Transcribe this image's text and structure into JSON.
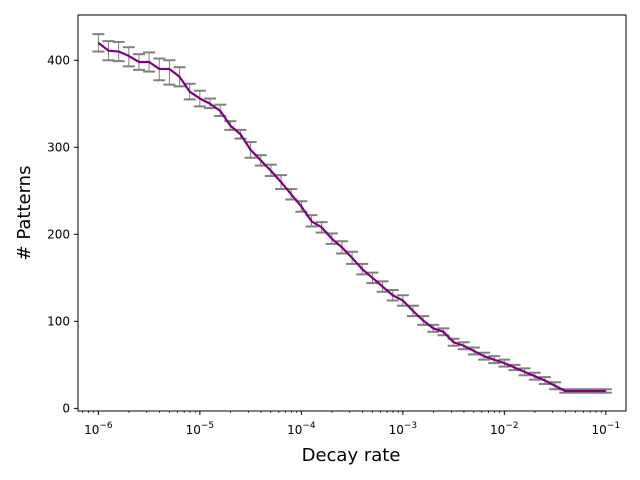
{
  "chart_data": {
    "type": "line",
    "title": "",
    "xlabel": "Decay rate",
    "ylabel": "# Patterns",
    "xscale": "log",
    "xlim": [
      6.3e-07,
      0.158
    ],
    "ylim": [
      -3,
      452
    ],
    "grid": false,
    "legend": "none",
    "x_tick_labels": [
      {
        "base": "10",
        "exp": "−6"
      },
      {
        "base": "10",
        "exp": "−5"
      },
      {
        "base": "10",
        "exp": "−4"
      },
      {
        "base": "10",
        "exp": "−3"
      },
      {
        "base": "10",
        "exp": "−2"
      },
      {
        "base": "10",
        "exp": "−1"
      }
    ],
    "y_ticks": [
      0,
      100,
      200,
      300,
      400
    ],
    "colors": {
      "line": "#800080",
      "errorbar": "#808080"
    },
    "series": [
      {
        "x_log10": [
          -6.0,
          -5.9,
          -5.8,
          -5.7,
          -5.6,
          -5.5,
          -5.4,
          -5.3,
          -5.2,
          -5.1,
          -5.0,
          -4.9,
          -4.8,
          -4.7,
          -4.6,
          -4.5,
          -4.4,
          -4.3,
          -4.2,
          -4.1,
          -4.0,
          -3.9,
          -3.8,
          -3.7,
          -3.6,
          -3.5,
          -3.4,
          -3.3,
          -3.2,
          -3.1,
          -3.0,
          -2.9,
          -2.8,
          -2.7,
          -2.6,
          -2.5,
          -2.4,
          -2.3,
          -2.2,
          -2.1,
          -2.0,
          -1.9,
          -1.8,
          -1.7,
          -1.6,
          -1.5,
          -1.4,
          -1.3,
          -1.2,
          -1.1,
          -1.0
        ],
        "values": [
          420,
          411,
          410,
          405,
          398,
          398,
          390,
          390,
          381,
          364,
          356,
          350,
          342,
          325,
          315,
          297,
          285,
          273,
          260,
          246,
          232,
          215,
          208,
          195,
          185,
          173,
          160,
          150,
          140,
          130,
          124,
          112,
          101,
          92,
          88,
          76,
          72,
          66,
          60,
          56,
          52,
          47,
          42,
          37,
          32,
          26,
          20,
          20,
          20,
          20,
          20
        ],
        "lower": [
          410,
          400,
          399,
          393,
          389,
          387,
          377,
          372,
          370,
          355,
          347,
          345,
          336,
          320,
          310,
          288,
          279,
          267,
          252,
          240,
          226,
          209,
          202,
          189,
          178,
          166,
          154,
          144,
          134,
          124,
          118,
          106,
          96,
          88,
          84,
          72,
          68,
          62,
          56,
          52,
          48,
          44,
          38,
          33,
          28,
          22,
          18,
          18,
          18,
          18,
          18
        ],
        "upper": [
          430,
          422,
          421,
          415,
          407,
          409,
          402,
          400,
          392,
          373,
          365,
          356,
          349,
          330,
          320,
          306,
          291,
          280,
          268,
          252,
          238,
          222,
          214,
          201,
          192,
          180,
          166,
          156,
          146,
          136,
          130,
          118,
          106,
          96,
          92,
          80,
          76,
          70,
          64,
          60,
          56,
          50,
          46,
          41,
          36,
          30,
          22,
          22,
          22,
          22,
          22
        ]
      }
    ]
  }
}
